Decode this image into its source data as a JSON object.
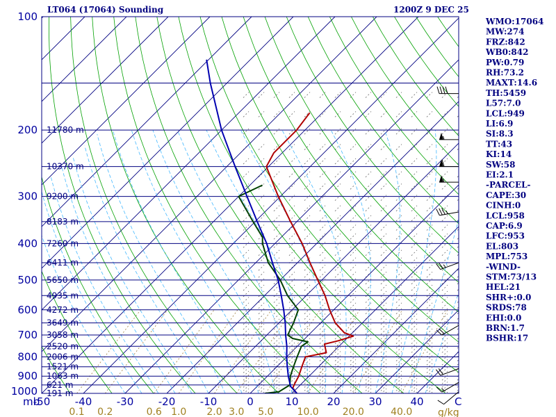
{
  "chart_data": {
    "type": "skew-t sounding",
    "title_left": "LT064 (17064) Sounding",
    "title_right": "1200Z  9 DEC 25",
    "pressure_axis": {
      "label_unit": "mb",
      "ticks": [
        100,
        200,
        300,
        400,
        500,
        600,
        700,
        800,
        900,
        1000
      ],
      "lines": [
        100,
        150,
        200,
        250,
        300,
        350,
        400,
        450,
        500,
        550,
        600,
        650,
        700,
        750,
        800,
        850,
        900,
        950,
        1000
      ],
      "range": [
        100,
        1000
      ]
    },
    "height_labels": [
      {
        "p": 200,
        "text": "11780 m"
      },
      {
        "p": 250,
        "text": "10370 m"
      },
      {
        "p": 300,
        "text": "9200 m"
      },
      {
        "p": 350,
        "text": "8183 m"
      },
      {
        "p": 400,
        "text": "7260 m"
      },
      {
        "p": 450,
        "text": "6411 m"
      },
      {
        "p": 500,
        "text": "5650 m"
      },
      {
        "p": 550,
        "text": "4935 m"
      },
      {
        "p": 600,
        "text": "4272 m"
      },
      {
        "p": 650,
        "text": "3649 m"
      },
      {
        "p": 700,
        "text": "3058 m"
      },
      {
        "p": 750,
        "text": "2520 m"
      },
      {
        "p": 800,
        "text": "2006 m"
      },
      {
        "p": 850,
        "text": "1521 m"
      },
      {
        "p": 900,
        "text": "1063 m"
      },
      {
        "p": 950,
        "text": "621 m"
      },
      {
        "p": 1000,
        "text": "191 m"
      }
    ],
    "temperature_axis": {
      "ticks": [
        -50,
        -40,
        -30,
        -20,
        -10,
        0,
        10,
        20,
        30,
        40
      ],
      "range": [
        -50,
        50
      ],
      "unit_label": "C"
    },
    "mixing_ratio_axis": {
      "ticks": [
        "0.1",
        "0.2",
        "0.6",
        "1.0",
        "2.0",
        "3.0",
        "5.0",
        "10.0",
        "20.0",
        "40.0"
      ],
      "unit_label": "g/kg"
    },
    "series": [
      {
        "name": "temperature",
        "color": "#b00000",
        "points": [
          {
            "p": 1000,
            "t": 11.2
          },
          {
            "p": 970,
            "t": 9.0
          },
          {
            "p": 950,
            "t": 8.5
          },
          {
            "p": 900,
            "t": 7.5
          },
          {
            "p": 850,
            "t": 6.0
          },
          {
            "p": 800,
            "t": 4.5
          },
          {
            "p": 780,
            "t": 8.5
          },
          {
            "p": 740,
            "t": 6.0
          },
          {
            "p": 725,
            "t": 8.5
          },
          {
            "p": 705,
            "t": 11.0
          },
          {
            "p": 690,
            "t": 8.0
          },
          {
            "p": 650,
            "t": 3.5
          },
          {
            "p": 600,
            "t": -1.0
          },
          {
            "p": 550,
            "t": -5.5
          },
          {
            "p": 500,
            "t": -11.0
          },
          {
            "p": 450,
            "t": -17.0
          },
          {
            "p": 400,
            "t": -23.5
          },
          {
            "p": 350,
            "t": -31.5
          },
          {
            "p": 300,
            "t": -40.5
          },
          {
            "p": 250,
            "t": -50.5
          },
          {
            "p": 230,
            "t": -52.0
          },
          {
            "p": 200,
            "t": -52.0
          },
          {
            "p": 180,
            "t": -53.0
          }
        ]
      },
      {
        "name": "dewpoint",
        "color": "#004000",
        "points": [
          {
            "p": 1000,
            "t": 3.5
          },
          {
            "p": 990,
            "t": 6.5
          },
          {
            "p": 950,
            "t": 7.5
          },
          {
            "p": 900,
            "t": 5.5
          },
          {
            "p": 850,
            "t": 4.0
          },
          {
            "p": 800,
            "t": 2.5
          },
          {
            "p": 750,
            "t": 1.0
          },
          {
            "p": 730,
            "t": 1.5
          },
          {
            "p": 715,
            "t": -3.0
          },
          {
            "p": 700,
            "t": -5.0
          },
          {
            "p": 650,
            "t": -6.5
          },
          {
            "p": 600,
            "t": -8.5
          },
          {
            "p": 550,
            "t": -14.5
          },
          {
            "p": 500,
            "t": -20.0
          },
          {
            "p": 450,
            "t": -27.0
          },
          {
            "p": 400,
            "t": -33.0
          },
          {
            "p": 385,
            "t": -34.5
          },
          {
            "p": 350,
            "t": -40.5
          },
          {
            "p": 300,
            "t": -50.0
          },
          {
            "p": 280,
            "t": -47.0
          }
        ]
      },
      {
        "name": "parcel",
        "color": "#0000b0",
        "points": [
          {
            "p": 1000,
            "t": 11.2
          },
          {
            "p": 958,
            "t": 8.0
          },
          {
            "p": 900,
            "t": 5.0
          },
          {
            "p": 850,
            "t": 2.5
          },
          {
            "p": 800,
            "t": 0.0
          },
          {
            "p": 750,
            "t": -2.5
          },
          {
            "p": 700,
            "t": -5.5
          },
          {
            "p": 650,
            "t": -8.5
          },
          {
            "p": 600,
            "t": -12.0
          },
          {
            "p": 550,
            "t": -16.0
          },
          {
            "p": 500,
            "t": -20.5
          },
          {
            "p": 450,
            "t": -26.0
          },
          {
            "p": 400,
            "t": -32.0
          },
          {
            "p": 350,
            "t": -39.5
          },
          {
            "p": 300,
            "t": -48.0
          },
          {
            "p": 250,
            "t": -58.0
          },
          {
            "p": 200,
            "t": -70.0
          },
          {
            "p": 150,
            "t": -84.0
          },
          {
            "p": 130,
            "t": -90.5
          }
        ]
      }
    ],
    "wind_barbs": [
      {
        "p": 160,
        "dir": 270,
        "speed": 40
      },
      {
        "p": 212,
        "dir": 270,
        "speed": 55
      },
      {
        "p": 250,
        "dir": 270,
        "speed": 60
      },
      {
        "p": 275,
        "dir": 270,
        "speed": 55
      },
      {
        "p": 330,
        "dir": 260,
        "speed": 35
      },
      {
        "p": 450,
        "dir": 250,
        "speed": 25
      },
      {
        "p": 660,
        "dir": 240,
        "speed": 20
      },
      {
        "p": 860,
        "dir": 250,
        "speed": 20
      },
      {
        "p": 935,
        "dir": 240,
        "speed": 15
      },
      {
        "p": 990,
        "dir": 230,
        "speed": 10
      }
    ],
    "indices": [
      "WMO:17064",
      "MW:274",
      "FRZ:842",
      "WB0:842",
      "PW:0.79",
      "RH:73.2",
      "MAXT:14.6",
      "TH:5459",
      "L57:7.0",
      "LCL:949",
      "LI:6.9",
      "SI:8.3",
      "TT:43",
      "KI:14",
      "SW:58",
      "EI:2.1",
      "-PARCEL-",
      "CAPE:30",
      "CINH:0",
      "LCL:958",
      "CAP:6.9",
      "LFC:953",
      "EL:803",
      "MPL:753",
      "-WIND-",
      "STM:73/13",
      "HEL:21",
      "SHR+:0.0",
      "SRDS:78",
      "EHI:0.0",
      "BRN:1.7",
      "BSHR:17"
    ]
  },
  "colors": {
    "frame": "#000080",
    "isobar": "#000080",
    "isotherm": "#000080",
    "dry_adiabat": "#00a000",
    "moist_adiabat": "#44b8ff",
    "mixing_ratio": "#a08040",
    "hatch": "#666666"
  }
}
